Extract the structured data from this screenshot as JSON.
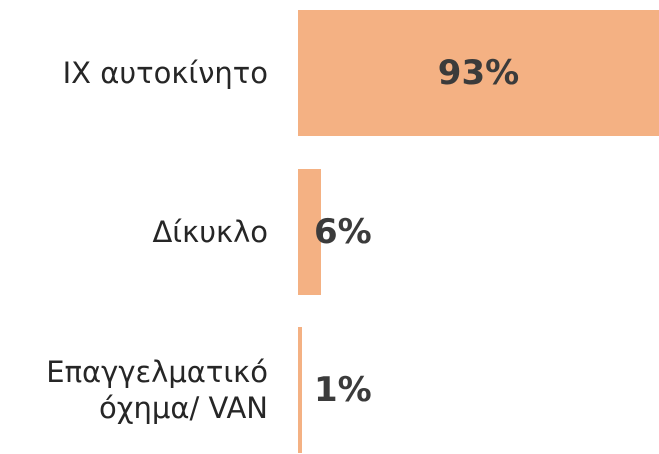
{
  "chart_data": {
    "type": "bar",
    "orientation": "horizontal",
    "categories": [
      "IX αυτοκίνητο",
      "Δίκυκλο",
      "Επαγγελματικό όχημα/ VAN"
    ],
    "values": [
      93,
      6,
      1
    ],
    "value_labels": [
      "93%",
      "6%",
      "1%"
    ],
    "color": "#F4B183"
  }
}
